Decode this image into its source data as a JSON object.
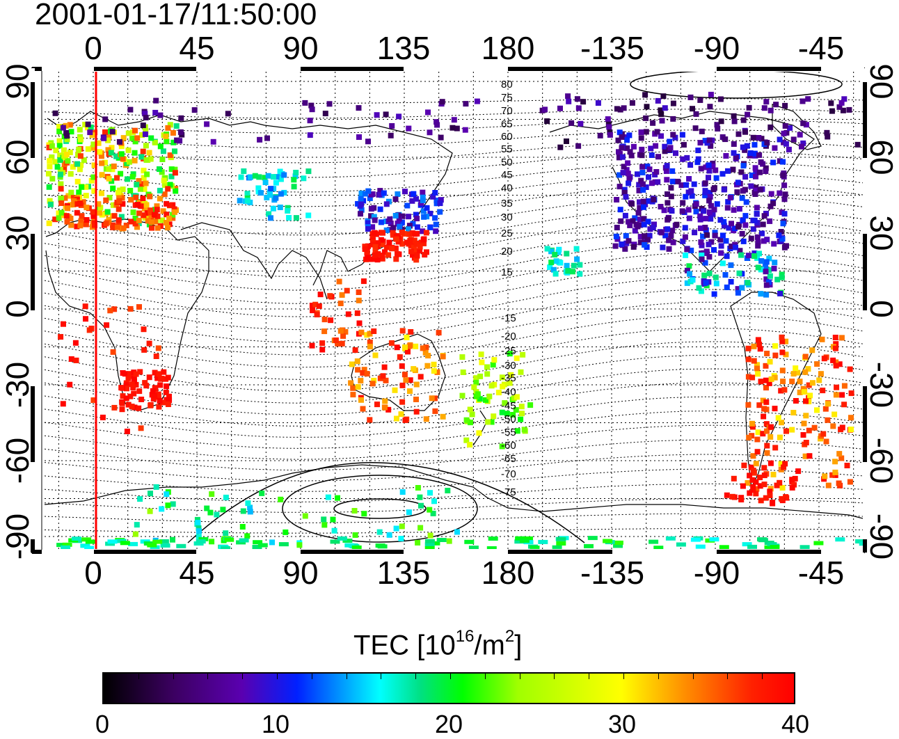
{
  "timestamp": "2001-01-17/11:50:00",
  "axes": {
    "top_ticks": [
      "0",
      "45",
      "90",
      "135",
      "180",
      "-135",
      "-90",
      "-45"
    ],
    "bottom_ticks": [
      "0",
      "45",
      "90",
      "135",
      "180",
      "-135",
      "-90",
      "-45"
    ],
    "left_ticks": [
      "90",
      "60",
      "30",
      "0",
      "-30",
      "-60",
      "-90"
    ],
    "right_ticks": [
      "90",
      "60",
      "30",
      "0",
      "-30",
      "-60",
      "-90"
    ]
  },
  "contour_labels": [
    "80",
    "75",
    "70",
    "65",
    "60",
    "55",
    "50",
    "45",
    "40",
    "35",
    "30",
    "25",
    "20",
    "15",
    "-15",
    "-20",
    "-25",
    "-30",
    "-35",
    "-40",
    "-45",
    "-50",
    "-55",
    "-60",
    "-65",
    "-70",
    "-75"
  ],
  "colorbar": {
    "title": "TEC  [10",
    "title_sup": "16",
    "title_unit": "/m",
    "title_sup2": "2",
    "title_end": "]",
    "ticks": [
      "0",
      "10",
      "20",
      "30",
      "40"
    ],
    "range": [
      0,
      40
    ]
  },
  "colors": {
    "terminator": "#ff0000",
    "frame": "#000000",
    "background": "#ffffff"
  }
}
